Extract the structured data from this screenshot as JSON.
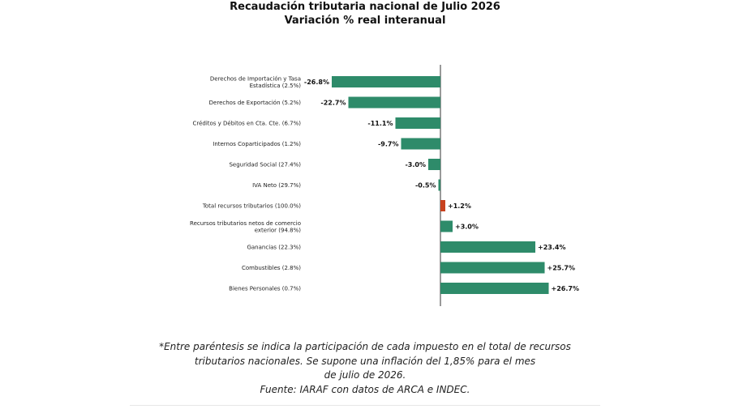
{
  "chart_data": {
    "type": "bar",
    "orientation": "horizontal",
    "title": "Recaudación tributaria nacional de Julio 2026",
    "subtitle": "Variación % real interanual",
    "categories": [
      "Derechos de Importación y Tasa Estadística (2.5%)",
      "Derechos de Exportación (5.2%)",
      "Créditos y Débitos en Cta. Cte. (6.7%)",
      "Internos Coparticipados (1.2%)",
      "Seguridad Social (27.4%)",
      "IVA Neto (29.7%)",
      "Total recursos tributarios (100.0%)",
      "Recursos tributarios netos de comercio exterior (94.8%)",
      "Ganancias (22.3%)",
      "Combustibles (2.8%)",
      "Bienes Personales (0.7%)"
    ],
    "category_lines": [
      [
        "Derechos de Importación y Tasa",
        "Estadística (2.5%)"
      ],
      [
        "Derechos de Exportación (5.2%)"
      ],
      [
        "Créditos y Débitos en Cta. Cte. (6.7%)"
      ],
      [
        "Internos Coparticipados (1.2%)"
      ],
      [
        "Seguridad Social (27.4%)"
      ],
      [
        "IVA Neto (29.7%)"
      ],
      [
        "Total recursos tributarios (100.0%)"
      ],
      [
        "Recursos tributarios netos de comercio",
        "exterior (94.8%)"
      ],
      [
        "Ganancias (22.3%)"
      ],
      [
        "Combustibles (2.8%)"
      ],
      [
        "Bienes Personales (0.7%)"
      ]
    ],
    "values": [
      -26.8,
      -22.7,
      -11.1,
      -9.7,
      -3.0,
      -0.5,
      1.2,
      3.0,
      23.4,
      25.7,
      26.7
    ],
    "value_labels": [
      "-26.8%",
      "-22.7%",
      "-11.1%",
      "-9.7%",
      "-3.0%",
      "-0.5%",
      "+1.2%",
      "+3.0%",
      "+23.4%",
      "+25.7%",
      "+26.7%"
    ],
    "highlight_category": "Total recursos tributarios (100.0%)",
    "xlim": [
      -27,
      27
    ],
    "xlabel": "",
    "ylabel": "",
    "grid": false,
    "colors": {
      "bar": "#2e8b6a",
      "highlight": "#c8421f",
      "axis": "#333333"
    }
  },
  "footnote": {
    "lines": [
      "*Entre paréntesis se indica la participación de cada impuesto en el total de recursos",
      "tributarios nacionales. Se supone una inflación del 1,85% para el mes",
      "de julio de 2026.",
      "Fuente: IARAF con datos de ARCA e INDEC."
    ]
  }
}
